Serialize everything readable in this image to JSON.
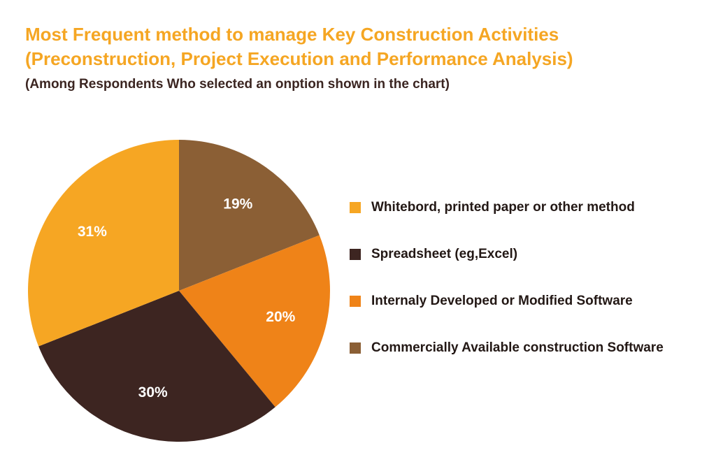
{
  "chart_data": {
    "type": "pie",
    "title": {
      "line1": "Most Frequent method to manage Key Construction Activities",
      "line2": "(Preconstruction, Project Execution and Performance Analysis)"
    },
    "subtitle": "(Among Respondents Who selected an onption shown in the chart)",
    "slices": [
      {
        "name": "Whitebord, printed paper or other method",
        "value": 31,
        "label": "31%",
        "color": "#f6a623"
      },
      {
        "name": "Spreadsheet (eg,Excel)",
        "value": 30,
        "label": "30%",
        "color": "#3d2521"
      },
      {
        "name": "Internaly Developed or Modified Software",
        "value": 20,
        "label": "20%",
        "color": "#ef8318"
      },
      {
        "name": "Commercially Available construction Software",
        "value": 19,
        "label": "19%",
        "color": "#8b5f35"
      }
    ],
    "draw_order": [
      3,
      2,
      1,
      0
    ],
    "start_at": "12 o'clock",
    "direction": "clockwise",
    "legend_position": "right"
  }
}
